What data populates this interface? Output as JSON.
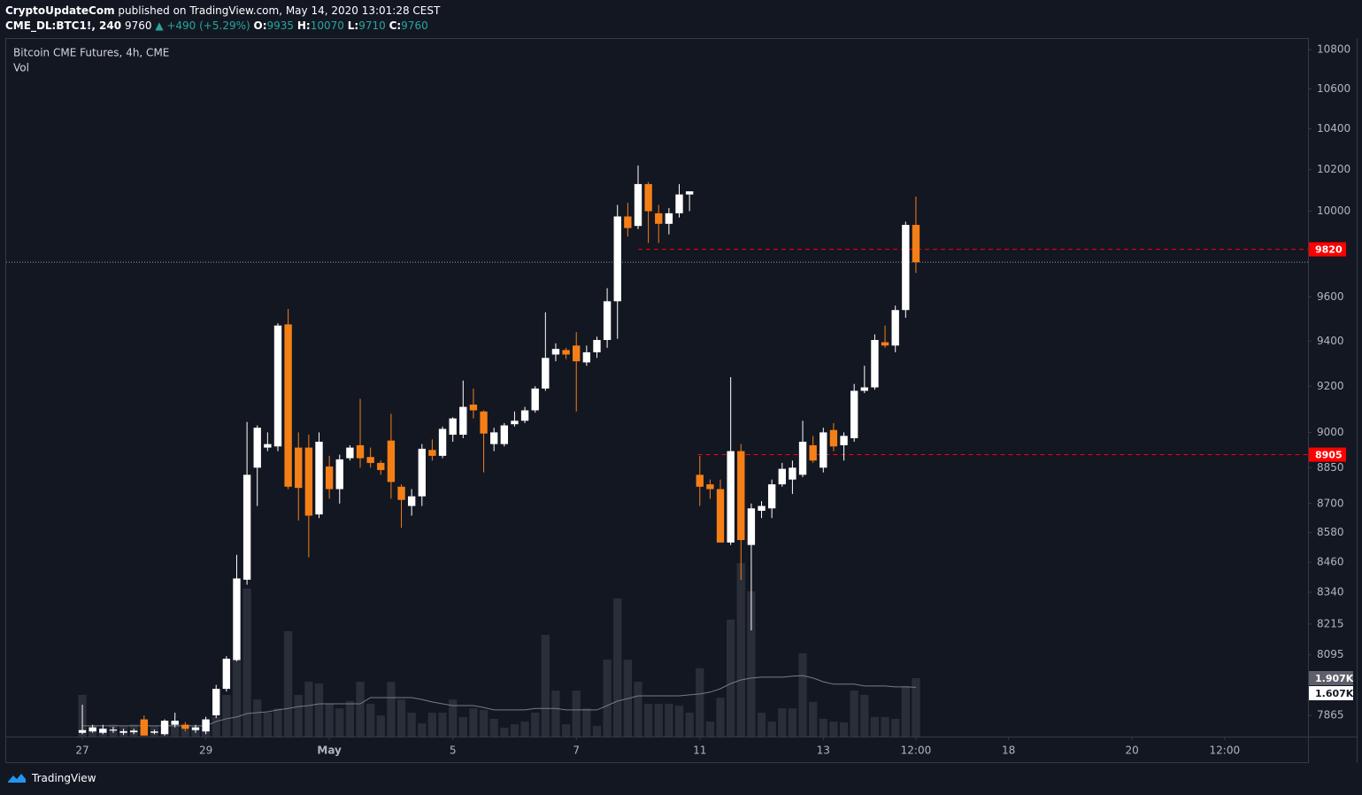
{
  "header": {
    "publisher": "CryptoUpdateCom",
    "published": "published on TradingView.com, May 14, 2020 13:01:28 CEST",
    "symbol": "CME_DL:BTC1!, 240",
    "last": "9760",
    "change": "▲ +490 (+5.29%)",
    "open_label": "O:",
    "open": "9935",
    "high_label": "H:",
    "high": "10070",
    "low_label": "L:",
    "low": "9710",
    "close_label": "C:",
    "close": "9760"
  },
  "footer": {
    "brand": "TradingView"
  },
  "chart_data": {
    "type": "candlestick",
    "title": "Bitcoin CME Futures, 4h, CME",
    "volume_title": "Vol",
    "log_scale": true,
    "ylim": [
      7786,
      10855
    ],
    "yticks": [
      10800,
      10600,
      10400,
      10200,
      10000,
      9600,
      9400,
      9200,
      9000,
      8850,
      8700,
      8580,
      8460,
      8340,
      8215,
      8095,
      7865
    ],
    "xlim": [
      -7.4,
      119.1
    ],
    "xticks": [
      {
        "value": 0,
        "label": "27"
      },
      {
        "value": 12,
        "label": "29"
      },
      {
        "value": 24,
        "label": "May"
      },
      {
        "value": 36,
        "label": "5"
      },
      {
        "value": 48,
        "label": "7"
      },
      {
        "value": 60,
        "label": "11"
      },
      {
        "value": 72,
        "label": "13"
      },
      {
        "value": 81,
        "label": "12:00"
      },
      {
        "value": 90,
        "label": "18"
      },
      {
        "value": 102,
        "label": "20"
      },
      {
        "value": 111,
        "label": "12:00"
      }
    ],
    "up_color": "#ffffff",
    "down_color": "#f57f17",
    "open": [
      7800,
      7805,
      7800,
      7808,
      7800,
      7802,
      7850,
      7800,
      7795,
      7830,
      7830,
      7810,
      7805,
      7865,
      7965,
      8075,
      8390,
      8850,
      8935,
      8940,
      9475,
      8935,
      8935,
      8655,
      8855,
      8760,
      8890,
      8945,
      8895,
      8870,
      8965,
      8770,
      8690,
      8730,
      8925,
      8900,
      8990,
      8990,
      9120,
      9090,
      8950,
      8950,
      9035,
      9050,
      9095,
      9190,
      9340,
      9360,
      9380,
      9305,
      9350,
      9405,
      9580,
      9975,
      9930,
      10130,
      9990,
      9940,
      9990,
      10080,
      8820,
      8780,
      8760,
      8540,
      8920,
      8530,
      8670,
      8680,
      8780,
      8800,
      8820,
      8945,
      8850,
      9010,
      8945,
      8975,
      9180,
      9195,
      9395,
      9380,
      9540,
      9935
    ],
    "high": [
      7905,
      7830,
      7830,
      7822,
      7815,
      7815,
      7865,
      7812,
      7850,
      7875,
      7840,
      7830,
      7860,
      7980,
      8090,
      8490,
      9045,
      9030,
      9000,
      9480,
      9545,
      9000,
      8990,
      9000,
      8900,
      8905,
      8945,
      9145,
      8935,
      8880,
      9080,
      8780,
      8760,
      8950,
      8970,
      9025,
      9065,
      9225,
      9190,
      9095,
      9020,
      9040,
      9090,
      9110,
      9200,
      9530,
      9390,
      9370,
      9440,
      9380,
      9420,
      9640,
      10030,
      10040,
      10220,
      10140,
      10030,
      10015,
      10130,
      10095,
      8900,
      8800,
      8800,
      9240,
      8950,
      8700,
      8710,
      8800,
      8870,
      8880,
      9050,
      8985,
      9020,
      9040,
      9000,
      9210,
      9290,
      9430,
      9470,
      9560,
      9950,
      10070
    ],
    "low": [
      7795,
      7800,
      7795,
      7800,
      7792,
      7795,
      7790,
      7795,
      7790,
      7820,
      7805,
      7800,
      7795,
      7855,
      7955,
      8070,
      8370,
      8690,
      8920,
      8920,
      8760,
      8630,
      8480,
      8640,
      8720,
      8700,
      8880,
      8850,
      8850,
      8820,
      8720,
      8600,
      8650,
      8690,
      8880,
      8890,
      8960,
      8975,
      9060,
      8830,
      8920,
      8940,
      9025,
      9040,
      9085,
      9180,
      9310,
      9320,
      9090,
      9290,
      9325,
      9370,
      9410,
      9880,
      9915,
      9850,
      9850,
      9890,
      9970,
      10000,
      8690,
      8720,
      8540,
      8530,
      8390,
      8190,
      8640,
      8640,
      8770,
      8740,
      8810,
      8870,
      8830,
      8920,
      8880,
      8960,
      9170,
      9185,
      9370,
      9350,
      9505,
      9710
    ],
    "close": [
      7810,
      7820,
      7815,
      7812,
      7806,
      7808,
      7790,
      7805,
      7845,
      7845,
      7815,
      7820,
      7850,
      7965,
      8080,
      8395,
      8820,
      9020,
      8950,
      9470,
      8770,
      8765,
      8650,
      8960,
      8760,
      8885,
      8935,
      8890,
      8870,
      8840,
      8790,
      8715,
      8730,
      8930,
      8900,
      9015,
      9060,
      9110,
      9095,
      8995,
      9000,
      9030,
      9050,
      9095,
      9190,
      9325,
      9365,
      9340,
      9310,
      9350,
      9405,
      9580,
      9975,
      9920,
      10130,
      10000,
      9940,
      9990,
      10080,
      10095,
      8770,
      8760,
      8540,
      8920,
      8550,
      8680,
      8690,
      8780,
      8845,
      8850,
      8960,
      8880,
      9000,
      8940,
      8985,
      9180,
      9195,
      9405,
      9380,
      9540,
      9935,
      9760
    ],
    "volume_color": "#2a2e39",
    "volume_ma_color": "#787b86",
    "y2lim": [
      0,
      22.77
    ],
    "volume": [
      1.36,
      0.35,
      0.29,
      0.4,
      0.35,
      0.4,
      0.49,
      0.35,
      0.4,
      0.49,
      0.4,
      0.35,
      0.49,
      0.64,
      1.36,
      2.51,
      4.83,
      1.21,
      0.78,
      0.92,
      3.44,
      1.36,
      1.79,
      1.73,
      1.07,
      0.92,
      1.16,
      1.79,
      1.07,
      0.69,
      1.79,
      1.21,
      0.78,
      0.43,
      0.78,
      0.78,
      1.21,
      0.64,
      0.92,
      0.87,
      0.58,
      0.29,
      0.4,
      0.49,
      0.78,
      3.32,
      1.5,
      0.4,
      1.5,
      0.92,
      0.35,
      2.51,
      4.51,
      2.51,
      1.79,
      1.07,
      1.07,
      1.07,
      1.01,
      0.78,
      2.23,
      0.49,
      1.27,
      3.82,
      5.66,
      4.74,
      0.78,
      0.49,
      0.92,
      0.92,
      2.72,
      1.13,
      0.58,
      0.49,
      0.46,
      1.5,
      1.36,
      0.64,
      0.64,
      0.58,
      1.65,
      1.907
    ],
    "volume_ma": [
      0.35,
      0.35,
      0.35,
      0.35,
      0.35,
      0.35,
      0.35,
      0.35,
      0.35,
      0.35,
      0.35,
      0.35,
      0.35,
      0.49,
      0.58,
      0.64,
      0.75,
      0.78,
      0.81,
      0.87,
      0.92,
      0.98,
      1.01,
      1.07,
      1.07,
      1.07,
      1.07,
      1.07,
      1.27,
      1.27,
      1.27,
      1.27,
      1.27,
      1.21,
      1.13,
      1.07,
      1.01,
      1.01,
      1.01,
      0.95,
      0.87,
      0.87,
      0.87,
      0.87,
      0.92,
      0.92,
      0.92,
      0.87,
      0.87,
      0.87,
      0.87,
      1.01,
      1.16,
      1.24,
      1.33,
      1.33,
      1.33,
      1.33,
      1.33,
      1.36,
      1.39,
      1.45,
      1.56,
      1.73,
      1.85,
      1.91,
      1.94,
      1.94,
      1.94,
      1.97,
      1.99,
      1.91,
      1.79,
      1.71,
      1.71,
      1.71,
      1.65,
      1.65,
      1.65,
      1.62,
      1.62,
      1.607
    ],
    "volume_tags": [
      {
        "value": 1.907,
        "label": "1.907K"
      },
      {
        "value": 1.607,
        "label": "1.607K"
      }
    ],
    "price_lines": [
      9820,
      8905
    ],
    "price_line_color": "#ff0000"
  }
}
